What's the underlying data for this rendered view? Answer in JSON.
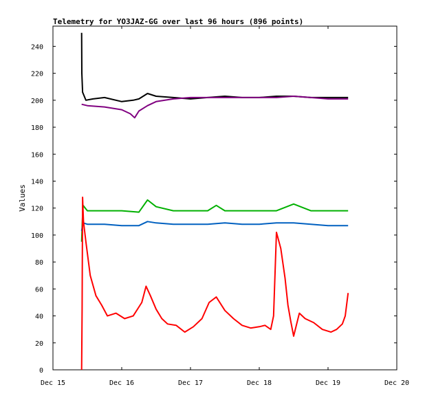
{
  "chart_data": {
    "type": "line",
    "title": "Telemetry for YO3JAZ-GG over last 96 hours (896 points)",
    "xlabel": "",
    "ylabel": "Values",
    "x_ticks": [
      "Dec 15",
      "Dec 16",
      "Dec 17",
      "Dec 18",
      "Dec 19",
      "Dec 20"
    ],
    "y_ticks": [
      0,
      20,
      40,
      60,
      80,
      100,
      120,
      140,
      160,
      180,
      200,
      220,
      240
    ],
    "xlim": [
      "2023-12-15",
      "2023-12-20"
    ],
    "ylim": [
      0,
      255
    ],
    "grid": false,
    "legend": "none",
    "series": [
      {
        "color": "#000000",
        "x": [
          "2023-12-15T10:00",
          "2023-12-15T10:05",
          "2023-12-15T10:20",
          "2023-12-15T11:30",
          "2023-12-15T14:00",
          "2023-12-15T18:00",
          "2023-12-16T00:00",
          "2023-12-16T04:00",
          "2023-12-16T06:00",
          "2023-12-16T09:00",
          "2023-12-16T12:00",
          "2023-12-16T18:00",
          "2023-12-17T00:00",
          "2023-12-17T06:00",
          "2023-12-17T12:00",
          "2023-12-17T18:00",
          "2023-12-18T00:00",
          "2023-12-18T06:00",
          "2023-12-18T12:00",
          "2023-12-18T18:00",
          "2023-12-19T00:00",
          "2023-12-19T07:00"
        ],
        "y": [
          250,
          220,
          206,
          200,
          201,
          202,
          199,
          200,
          201,
          205,
          203,
          202,
          201,
          202,
          203,
          202,
          202,
          203,
          203,
          202,
          202,
          202
        ]
      },
      {
        "color": "#800080",
        "x": [
          "2023-12-15T10:00",
          "2023-12-15T12:00",
          "2023-12-15T18:00",
          "2023-12-16T00:00",
          "2023-12-16T03:00",
          "2023-12-16T04:30",
          "2023-12-16T06:00",
          "2023-12-16T09:00",
          "2023-12-16T12:00",
          "2023-12-16T18:00",
          "2023-12-17T00:00",
          "2023-12-17T06:00",
          "2023-12-17T12:00",
          "2023-12-17T18:00",
          "2023-12-18T00:00",
          "2023-12-18T06:00",
          "2023-12-18T12:00",
          "2023-12-18T18:00",
          "2023-12-19T00:00",
          "2023-12-19T07:00"
        ],
        "y": [
          197,
          196,
          195,
          193,
          190,
          187,
          192,
          196,
          199,
          201,
          202,
          202,
          202,
          202,
          202,
          202,
          203,
          202,
          201,
          201
        ]
      },
      {
        "color": "#00b000",
        "x": [
          "2023-12-15T10:00",
          "2023-12-15T10:15",
          "2023-12-15T10:30",
          "2023-12-15T12:00",
          "2023-12-15T18:00",
          "2023-12-16T00:00",
          "2023-12-16T06:00",
          "2023-12-16T09:00",
          "2023-12-16T12:00",
          "2023-12-16T18:00",
          "2023-12-17T00:00",
          "2023-12-17T06:00",
          "2023-12-17T09:00",
          "2023-12-17T12:00",
          "2023-12-17T18:00",
          "2023-12-18T00:00",
          "2023-12-18T06:00",
          "2023-12-18T12:00",
          "2023-12-18T18:00",
          "2023-12-19T00:00",
          "2023-12-19T07:00"
        ],
        "y": [
          95,
          110,
          122,
          118,
          118,
          118,
          117,
          126,
          121,
          118,
          118,
          118,
          122,
          118,
          118,
          118,
          118,
          123,
          118,
          118,
          118
        ]
      },
      {
        "color": "#0060c0",
        "x": [
          "2023-12-15T10:00",
          "2023-12-15T10:30",
          "2023-12-15T12:00",
          "2023-12-15T18:00",
          "2023-12-16T00:00",
          "2023-12-16T06:00",
          "2023-12-16T09:00",
          "2023-12-16T12:00",
          "2023-12-16T18:00",
          "2023-12-17T00:00",
          "2023-12-17T06:00",
          "2023-12-17T12:00",
          "2023-12-17T18:00",
          "2023-12-18T00:00",
          "2023-12-18T06:00",
          "2023-12-18T12:00",
          "2023-12-18T18:00",
          "2023-12-19T00:00",
          "2023-12-19T07:00"
        ],
        "y": [
          103,
          109,
          108,
          108,
          107,
          107,
          110,
          109,
          108,
          108,
          108,
          109,
          108,
          108,
          109,
          109,
          108,
          107,
          107
        ]
      },
      {
        "color": "#ff0000",
        "x": [
          "2023-12-15T10:00",
          "2023-12-15T10:10",
          "2023-12-15T10:20",
          "2023-12-15T10:40",
          "2023-12-15T11:30",
          "2023-12-15T13:00",
          "2023-12-15T15:00",
          "2023-12-15T17:00",
          "2023-12-15T19:00",
          "2023-12-15T22:00",
          "2023-12-16T01:00",
          "2023-12-16T04:00",
          "2023-12-16T07:00",
          "2023-12-16T08:30",
          "2023-12-16T10:00",
          "2023-12-16T12:00",
          "2023-12-16T14:00",
          "2023-12-16T16:00",
          "2023-12-16T19:00",
          "2023-12-16T22:00",
          "2023-12-17T01:00",
          "2023-12-17T04:00",
          "2023-12-17T06:30",
          "2023-12-17T09:00",
          "2023-12-17T12:00",
          "2023-12-17T15:00",
          "2023-12-17T18:00",
          "2023-12-17T21:00",
          "2023-12-18T00:00",
          "2023-12-18T02:00",
          "2023-12-18T04:00",
          "2023-12-18T05:00",
          "2023-12-18T06:00",
          "2023-12-18T07:30",
          "2023-12-18T09:00",
          "2023-12-18T10:00",
          "2023-12-18T11:00",
          "2023-12-18T12:00",
          "2023-12-18T14:00",
          "2023-12-18T16:00",
          "2023-12-18T19:00",
          "2023-12-18T22:00",
          "2023-12-19T01:00",
          "2023-12-19T03:00",
          "2023-12-19T05:00",
          "2023-12-19T06:00",
          "2023-12-19T07:00"
        ],
        "y": [
          0,
          45,
          128,
          110,
          95,
          70,
          55,
          48,
          40,
          42,
          38,
          40,
          50,
          62,
          55,
          45,
          38,
          34,
          33,
          28,
          32,
          38,
          50,
          54,
          44,
          38,
          33,
          31,
          32,
          33,
          30,
          40,
          102,
          90,
          68,
          48,
          36,
          25,
          42,
          38,
          35,
          30,
          28,
          30,
          34,
          40,
          57
        ]
      }
    ]
  }
}
